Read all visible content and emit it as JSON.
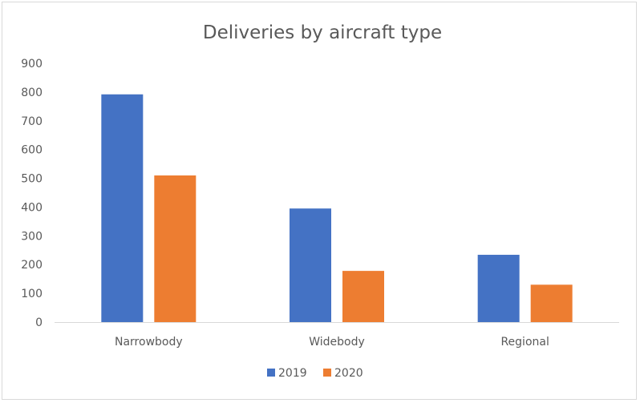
{
  "chart_data": {
    "type": "bar",
    "title": "Deliveries by aircraft type",
    "xlabel": "",
    "ylabel": "",
    "categories": [
      "Narrowbody",
      "Widebody",
      "Regional"
    ],
    "series": [
      {
        "name": "2019",
        "values": [
          792,
          395,
          234
        ],
        "color": "#4472c4"
      },
      {
        "name": "2020",
        "values": [
          510,
          178,
          130
        ],
        "color": "#ed7d31"
      }
    ],
    "ylim": [
      0,
      900
    ],
    "yticks": [
      0,
      100,
      200,
      300,
      400,
      500,
      600,
      700,
      800,
      900
    ],
    "grid": false,
    "legend_position": "bottom"
  }
}
